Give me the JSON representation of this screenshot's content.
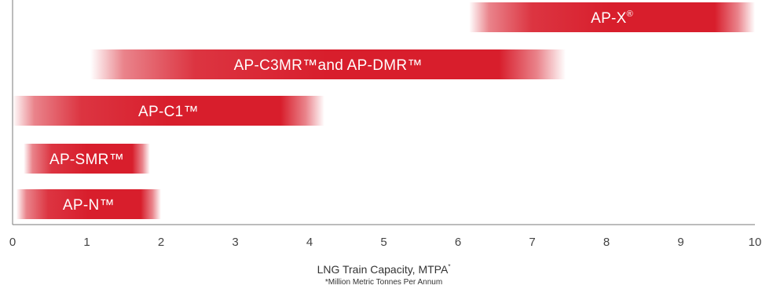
{
  "chart_data": {
    "type": "bar",
    "orientation": "horizontal",
    "bar_style": "range",
    "title": "",
    "xlabel": "LNG Train Capacity, MTPA",
    "xlabel_superscript": "*",
    "xlabel_note": "*Million Metric Tonnes Per Annum",
    "ylabel": "",
    "xlim": [
      0,
      10
    ],
    "ticks": [
      "0",
      "1",
      "2",
      "3",
      "4",
      "5",
      "6",
      "7",
      "8",
      "9",
      "10"
    ],
    "grid": false,
    "legend": "none",
    "bar_color": "#d81e2c",
    "bars": [
      {
        "label": "AP-X",
        "mark": "®",
        "start": 6.15,
        "end": 10.0
      },
      {
        "label": "AP-C3MR",
        "mark": "™",
        "label_suffix": "and AP-DMR™",
        "start": 1.05,
        "end": 7.45
      },
      {
        "label": "AP-C1",
        "mark": "™",
        "start": 0.0,
        "end": 4.2
      },
      {
        "label": "AP-SMR",
        "mark": "™",
        "start": 0.15,
        "end": 1.85
      },
      {
        "label": "AP-N",
        "mark": "™",
        "start": 0.05,
        "end": 2.0
      }
    ]
  }
}
